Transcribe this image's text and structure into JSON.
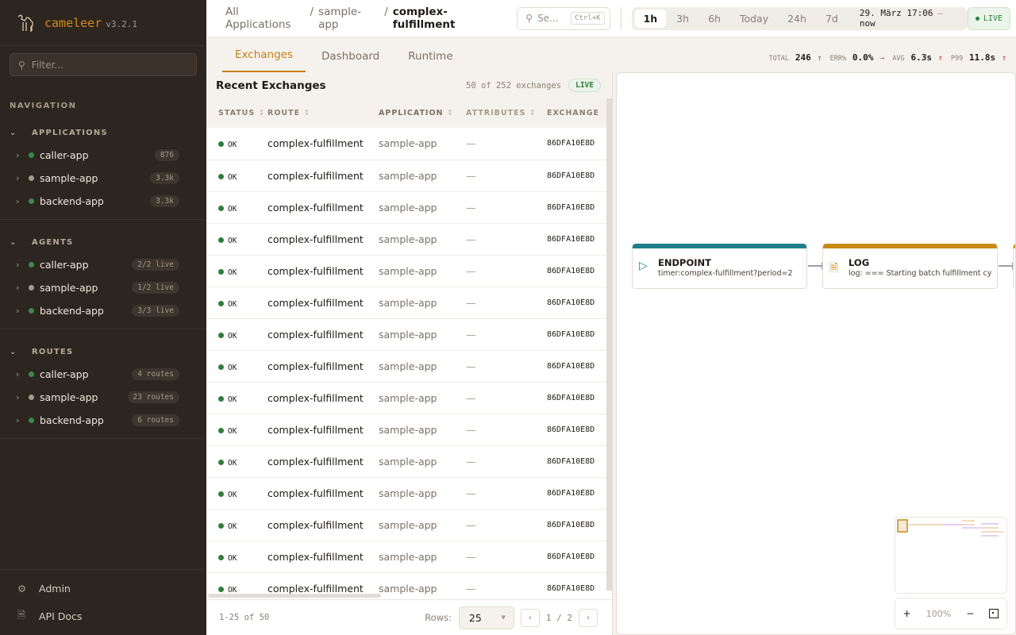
{
  "app": {
    "name": "cameleer",
    "version": "v3.2.1"
  },
  "sidebar": {
    "filter_placeholder": "Filter...",
    "nav_label": "NAVIGATION",
    "sections": [
      {
        "title": "APPLICATIONS",
        "items": [
          {
            "label": "caller-app",
            "badge": "876",
            "status": "#3a8a48"
          },
          {
            "label": "sample-app",
            "badge": "3.3k",
            "status": "#a59a8c"
          },
          {
            "label": "backend-app",
            "badge": "3.3k",
            "status": "#3a8a48"
          }
        ]
      },
      {
        "title": "AGENTS",
        "items": [
          {
            "label": "caller-app",
            "badge": "2/2 live",
            "status": "#3a8a48"
          },
          {
            "label": "sample-app",
            "badge": "1/2 live",
            "status": "#a59a8c"
          },
          {
            "label": "backend-app",
            "badge": "3/3 live",
            "status": "#3a8a48"
          }
        ]
      },
      {
        "title": "ROUTES",
        "items": [
          {
            "label": "caller-app",
            "badge": "4 routes",
            "status": "#3a8a48"
          },
          {
            "label": "sample-app",
            "badge": "23 routes",
            "status": "#a59a8c"
          },
          {
            "label": "backend-app",
            "badge": "6 routes",
            "status": "#3a8a48"
          }
        ]
      }
    ],
    "footer": [
      {
        "label": "Admin",
        "icon": "gear-icon"
      },
      {
        "label": "API Docs",
        "icon": "document-icon"
      }
    ]
  },
  "header": {
    "breadcrumb": [
      "All Applications",
      "sample-app",
      "complex-fulfillment"
    ],
    "search_placeholder": "Se...",
    "search_shortcut": "Ctrl+K",
    "time_ranges": [
      "1h",
      "3h",
      "6h",
      "Today",
      "24h",
      "7d"
    ],
    "active_range": "1h",
    "range_start": "29. März 17:06",
    "range_end": "now",
    "live_label": "LIVE"
  },
  "tabs": [
    "Exchanges",
    "Dashboard",
    "Runtime"
  ],
  "active_tab": "Exchanges",
  "stats": {
    "total_label": "TOTAL",
    "total": "246",
    "err_label": "ERR%",
    "err": "0.0%",
    "avg_label": "AVG",
    "avg": "6.3s",
    "p99_label": "P99",
    "p99": "11.8s"
  },
  "exchanges": {
    "title": "Recent Exchanges",
    "count_text": "50 of 252 exchanges",
    "live": "LIVE",
    "columns": [
      "STATUS",
      "ROUTE",
      "APPLICATION",
      "ATTRIBUTES",
      "EXCHANGE"
    ],
    "rows": [
      {
        "status": "OK",
        "route": "complex-fulfillment",
        "app": "sample-app",
        "attrs": "—",
        "id": "86DFA10E8D"
      },
      {
        "status": "OK",
        "route": "complex-fulfillment",
        "app": "sample-app",
        "attrs": "—",
        "id": "86DFA10E8D"
      },
      {
        "status": "OK",
        "route": "complex-fulfillment",
        "app": "sample-app",
        "attrs": "—",
        "id": "86DFA10E8D"
      },
      {
        "status": "OK",
        "route": "complex-fulfillment",
        "app": "sample-app",
        "attrs": "—",
        "id": "86DFA10E8D"
      },
      {
        "status": "OK",
        "route": "complex-fulfillment",
        "app": "sample-app",
        "attrs": "—",
        "id": "86DFA10E8D"
      },
      {
        "status": "OK",
        "route": "complex-fulfillment",
        "app": "sample-app",
        "attrs": "—",
        "id": "86DFA10E8D"
      },
      {
        "status": "OK",
        "route": "complex-fulfillment",
        "app": "sample-app",
        "attrs": "—",
        "id": "86DFA10E8D"
      },
      {
        "status": "OK",
        "route": "complex-fulfillment",
        "app": "sample-app",
        "attrs": "—",
        "id": "86DFA10E8D"
      },
      {
        "status": "OK",
        "route": "complex-fulfillment",
        "app": "sample-app",
        "attrs": "—",
        "id": "86DFA10E8D"
      },
      {
        "status": "OK",
        "route": "complex-fulfillment",
        "app": "sample-app",
        "attrs": "—",
        "id": "86DFA10E8D"
      },
      {
        "status": "OK",
        "route": "complex-fulfillment",
        "app": "sample-app",
        "attrs": "—",
        "id": "86DFA10E8D"
      },
      {
        "status": "OK",
        "route": "complex-fulfillment",
        "app": "sample-app",
        "attrs": "—",
        "id": "86DFA10E8D"
      },
      {
        "status": "OK",
        "route": "complex-fulfillment",
        "app": "sample-app",
        "attrs": "—",
        "id": "86DFA10E8D"
      },
      {
        "status": "OK",
        "route": "complex-fulfillment",
        "app": "sample-app",
        "attrs": "—",
        "id": "86DFA10E8D"
      },
      {
        "status": "OK",
        "route": "complex-fulfillment",
        "app": "sample-app",
        "attrs": "—",
        "id": "86DFA10E8D"
      }
    ],
    "range_text": "1-25 of 50",
    "rows_label": "Rows:",
    "rows_value": "25",
    "page_text": "1 / 2"
  },
  "diagram": {
    "nodes": [
      {
        "type": "ENDPOINT",
        "detail": "timer:complex-fulfillment?period=2",
        "color": "#1f7f8c",
        "icon": "play-icon"
      },
      {
        "type": "LOG",
        "detail": "log: === Starting batch fulfillment cy",
        "color": "#c98a16",
        "icon": "document-icon"
      }
    ],
    "zoom": "100%"
  }
}
